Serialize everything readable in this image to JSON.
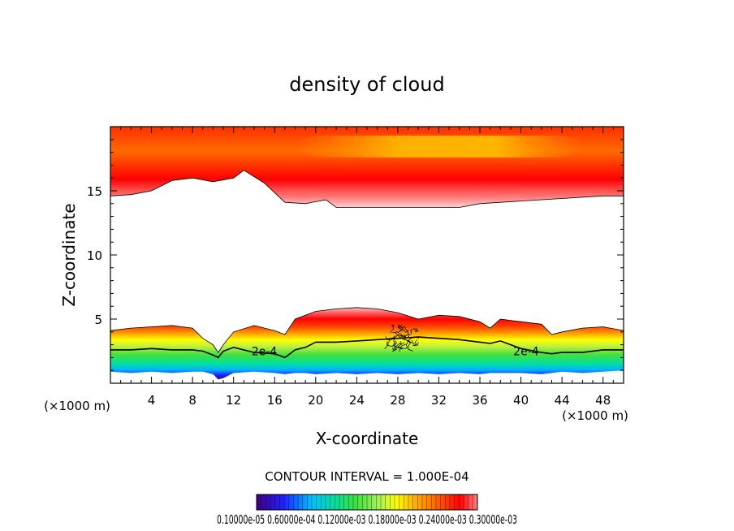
{
  "chart_data": {
    "type": "heatmap",
    "title": "density of cloud",
    "xlabel": "X-coordinate",
    "ylabel": "Z-coordinate",
    "x_unit_left": "(×1000 m)",
    "x_unit_right": "(×1000 m)",
    "xlim": [
      0,
      50
    ],
    "ylim": [
      0,
      20
    ],
    "x_ticks": [
      4,
      8,
      12,
      16,
      20,
      24,
      28,
      32,
      36,
      40,
      44,
      48
    ],
    "y_ticks": [
      5,
      10,
      15
    ],
    "contour_interval_text": "CONTOUR INTERVAL = 1.000E-04",
    "contour_labels": [
      {
        "text": "2e-4",
        "x": 15,
        "z": 2.5
      },
      {
        "text": "2e-4",
        "x": 40.5,
        "z": 2.5
      }
    ],
    "colorbar_labels_text": "0.10000e-05 0.60000e-04 0.12000e-03 0.18000e-03 0.24000e-03 0.30000e-03",
    "colormap": [
      "#400080",
      "#2020ff",
      "#00c0ff",
      "#00e0a0",
      "#40e040",
      "#a0f060",
      "#ffff00",
      "#ffb000",
      "#ff6000",
      "#ff0000",
      "#ff8080"
    ],
    "upper_layer": {
      "x": [
        0,
        2,
        4,
        6,
        8,
        10,
        12,
        13,
        15,
        17,
        19,
        21,
        22,
        26,
        30,
        34,
        36,
        40,
        44,
        48,
        50
      ],
      "base_z": [
        14.6,
        14.7,
        15.0,
        15.8,
        16.0,
        15.7,
        16.0,
        16.6,
        15.6,
        14.1,
        14.0,
        14.3,
        13.7,
        13.7,
        13.7,
        13.7,
        14.0,
        14.2,
        14.4,
        14.6,
        14.6
      ],
      "top_z": 20
    },
    "lower_layer": {
      "x": [
        0,
        2,
        4,
        6,
        8,
        9,
        10,
        10.5,
        11,
        12,
        14,
        16,
        17,
        18,
        19,
        20,
        22,
        24,
        26,
        28,
        30,
        32,
        34,
        36,
        37,
        38,
        40,
        42,
        43,
        44,
        46,
        48,
        50
      ],
      "top_z": [
        4.1,
        4.3,
        4.4,
        4.5,
        4.3,
        3.5,
        3.0,
        2.4,
        3.0,
        4.0,
        4.5,
        4.1,
        3.8,
        5.0,
        5.3,
        5.6,
        5.8,
        5.9,
        5.8,
        5.5,
        5.0,
        5.3,
        5.2,
        4.8,
        4.3,
        5.0,
        4.8,
        4.6,
        3.8,
        4.0,
        4.3,
        4.4,
        4.1
      ],
      "contour_2e4_z": [
        2.6,
        2.6,
        2.7,
        2.6,
        2.6,
        2.5,
        2.2,
        2.0,
        2.5,
        2.8,
        2.4,
        2.3,
        2.0,
        2.6,
        2.8,
        3.2,
        3.2,
        3.3,
        3.4,
        3.5,
        3.6,
        3.5,
        3.4,
        3.2,
        3.1,
        3.3,
        2.7,
        2.4,
        2.3,
        2.4,
        2.4,
        2.6,
        2.6
      ],
      "base_z": [
        0.9,
        0.8,
        0.9,
        0.8,
        0.9,
        0.9,
        0.7,
        0.3,
        0.4,
        0.8,
        0.9,
        0.8,
        0.7,
        0.8,
        0.8,
        0.7,
        0.8,
        0.7,
        0.8,
        0.7,
        0.8,
        0.7,
        0.8,
        0.7,
        0.8,
        0.8,
        0.8,
        0.7,
        0.8,
        0.9,
        0.8,
        0.9,
        1.0
      ]
    }
  }
}
